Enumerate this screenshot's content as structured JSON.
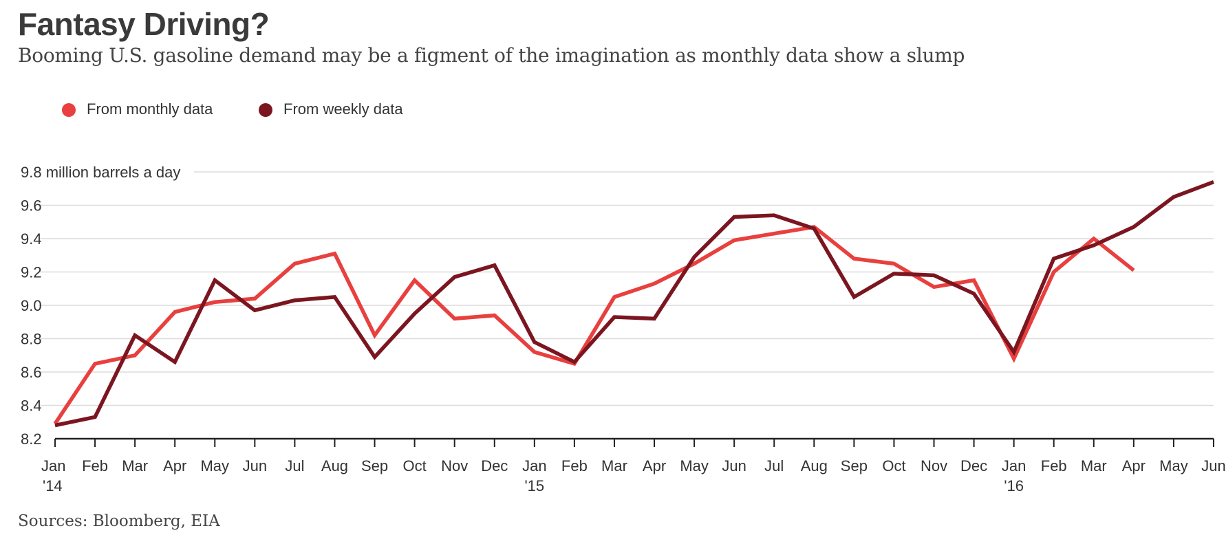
{
  "colors": {
    "monthly": "#e8403e",
    "weekly": "#7b1621",
    "grid": "#dcdcdc",
    "axis": "#222222",
    "text": "#333333"
  },
  "chart_data": {
    "type": "line",
    "title": "Fantasy Driving?",
    "subtitle": "Booming U.S. gasoline demand may be a figment of the imagination as monthly data show a slump",
    "ylabel": "9.8 million barrels a day",
    "source": "Sources: Bloomberg, EIA",
    "legend_position": "top-left",
    "grid": true,
    "ylim": [
      8.2,
      9.8
    ],
    "yticks": [
      "8.2",
      "8.4",
      "8.6",
      "8.8",
      "9.0",
      "9.2",
      "9.4",
      "9.6"
    ],
    "categories": [
      "Jan",
      "Feb",
      "Mar",
      "Apr",
      "May",
      "Jun",
      "Jul",
      "Aug",
      "Sep",
      "Oct",
      "Nov",
      "Dec",
      "Jan",
      "Feb",
      "Mar",
      "Apr",
      "May",
      "Jun",
      "Jul",
      "Aug",
      "Sep",
      "Oct",
      "Nov",
      "Dec",
      "Jan",
      "Feb",
      "Mar",
      "Apr",
      "May",
      "Jun"
    ],
    "year_labels": [
      {
        "index": 0,
        "label": "'14"
      },
      {
        "index": 12,
        "label": "'15"
      },
      {
        "index": 24,
        "label": "'16"
      }
    ],
    "series": [
      {
        "name": "From monthly data",
        "color": "#e8403e",
        "values": [
          8.29,
          8.65,
          8.7,
          8.96,
          9.02,
          9.04,
          9.25,
          9.31,
          8.82,
          9.15,
          8.92,
          8.94,
          8.72,
          8.65,
          9.05,
          9.13,
          9.25,
          9.39,
          9.43,
          9.47,
          9.28,
          9.25,
          9.11,
          9.15,
          8.68,
          9.2,
          9.4,
          9.21,
          null,
          null
        ]
      },
      {
        "name": "From weekly data",
        "color": "#7b1621",
        "values": [
          8.28,
          8.33,
          8.82,
          8.66,
          9.15,
          8.97,
          9.03,
          9.05,
          8.69,
          8.95,
          9.17,
          9.24,
          8.78,
          8.66,
          8.93,
          8.92,
          9.29,
          9.53,
          9.54,
          9.46,
          9.05,
          9.19,
          9.18,
          9.07,
          8.72,
          9.28,
          9.36,
          9.47,
          9.65,
          9.74
        ]
      }
    ]
  }
}
